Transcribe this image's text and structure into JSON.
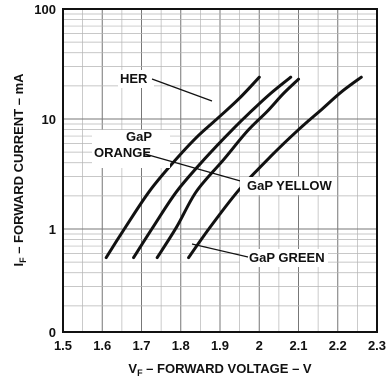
{
  "chart_data": {
    "type": "line",
    "xlabel_parts": {
      "main": "V",
      "sub": "F",
      "rest": " – FORWARD VOLTAGE – V"
    },
    "ylabel_parts": {
      "main": "I",
      "sub": "F",
      "rest": " – FORWARD CURRENT – mA"
    },
    "x_scale": "linear",
    "y_scale": "log",
    "xlim": [
      1.5,
      2.3
    ],
    "ylim_decades": [
      1,
      100
    ],
    "x_ticks": [
      1.5,
      1.6,
      1.7,
      1.8,
      1.9,
      2.0,
      2.1,
      2.2,
      2.3
    ],
    "x_tick_labels": [
      "1.5",
      "1.6",
      "1.7",
      "1.8",
      "1.9",
      "2",
      "2.1",
      "2.2",
      "2.3"
    ],
    "y_tick_labels": [
      {
        "value": 100,
        "label": "100"
      },
      {
        "value": 10,
        "label": "10"
      },
      {
        "value": 1,
        "label": "1"
      },
      {
        "value": "bottom",
        "label": "0"
      }
    ],
    "grid": true,
    "series": [
      {
        "name": "HER",
        "points": [
          [
            1.61,
            0.55
          ],
          [
            1.66,
            1.05
          ],
          [
            1.72,
            2.2
          ],
          [
            1.78,
            4.0
          ],
          [
            1.84,
            6.8
          ],
          [
            1.9,
            10.6
          ],
          [
            1.95,
            15.5
          ],
          [
            2.0,
            24.0
          ]
        ]
      },
      {
        "name": "GaP ORANGE",
        "points": [
          [
            1.68,
            0.55
          ],
          [
            1.73,
            1.05
          ],
          [
            1.79,
            2.2
          ],
          [
            1.86,
            4.3
          ],
          [
            1.93,
            7.9
          ],
          [
            1.98,
            11.8
          ],
          [
            2.03,
            17.2
          ],
          [
            2.08,
            24.0
          ]
        ]
      },
      {
        "name": "GaP YELLOW",
        "points": [
          [
            1.74,
            0.55
          ],
          [
            1.79,
            1.05
          ],
          [
            1.84,
            2.2
          ],
          [
            1.91,
            4.3
          ],
          [
            1.97,
            7.8
          ],
          [
            2.02,
            11.7
          ],
          [
            2.06,
            16.8
          ],
          [
            2.1,
            23.0
          ]
        ]
      },
      {
        "name": "GaP GREEN",
        "points": [
          [
            1.82,
            0.55
          ],
          [
            1.88,
            1.1
          ],
          [
            1.95,
            2.3
          ],
          [
            2.03,
            4.6
          ],
          [
            2.1,
            8.0
          ],
          [
            2.16,
            12.3
          ],
          [
            2.21,
            17.7
          ],
          [
            2.26,
            24.0
          ]
        ]
      }
    ],
    "annotations": [
      {
        "series": "HER",
        "label": "HER"
      },
      {
        "series": "GaP ORANGE",
        "label_lines": [
          "GaP",
          "ORANGE"
        ]
      },
      {
        "series": "GaP YELLOW",
        "label": "GaP YELLOW"
      },
      {
        "series": "GaP GREEN",
        "label": "GaP GREEN"
      }
    ]
  }
}
